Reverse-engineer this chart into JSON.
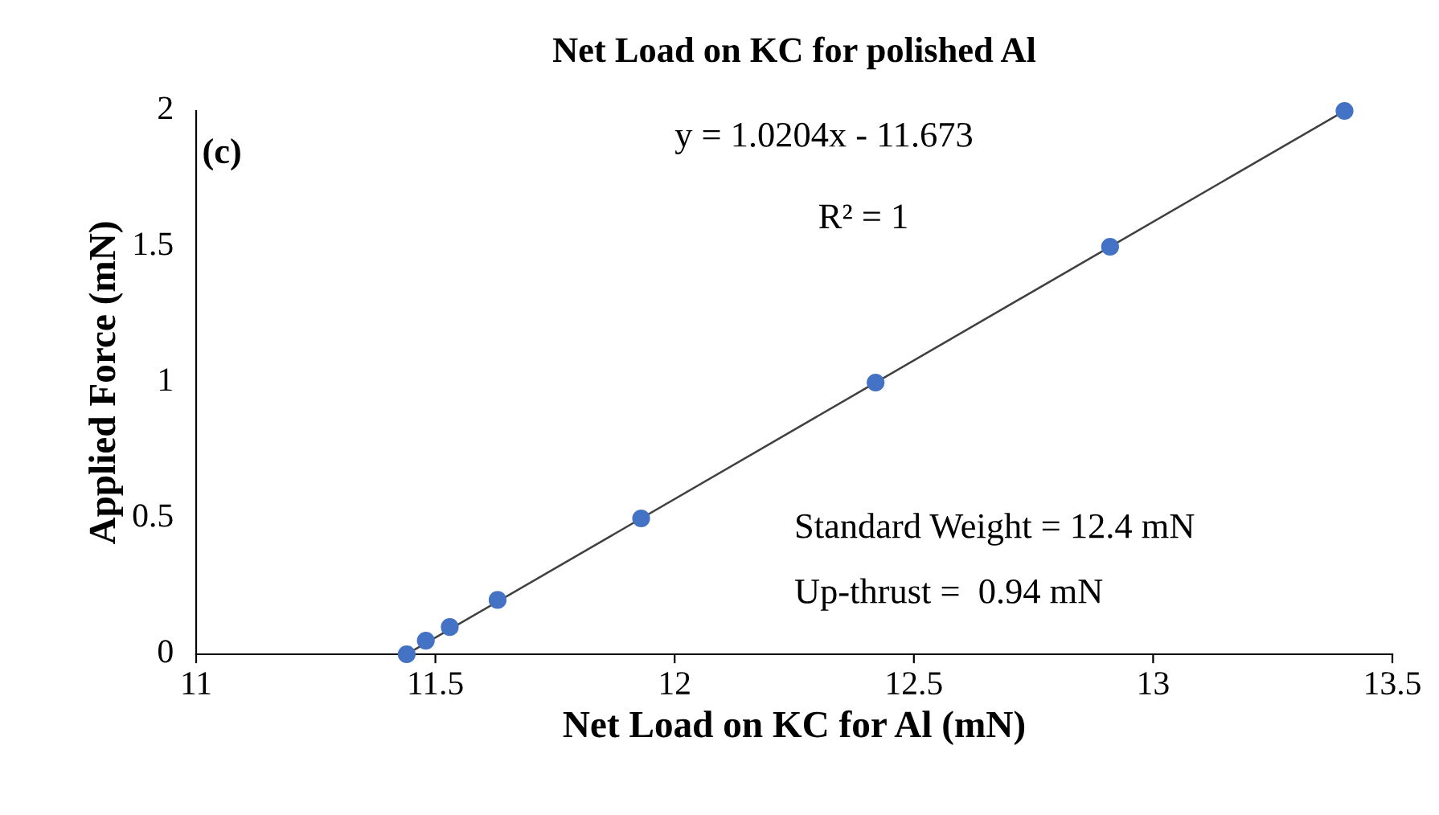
{
  "chart_data": {
    "type": "scatter",
    "title": "Net Load on KC for polished Al",
    "xlabel": "Net Load on KC for Al (mN)",
    "ylabel": "Applied Force (mN)",
    "series": [
      {
        "type": "scatter",
        "color": "#4472c4",
        "marker": "circle",
        "x": [
          11.44,
          11.48,
          11.53,
          11.63,
          11.93,
          12.42,
          12.91,
          13.4
        ],
        "values": [
          0,
          0.05,
          0.1,
          0.2,
          0.5,
          1,
          1.5,
          2
        ]
      },
      {
        "type": "line",
        "color": "#404040",
        "line_style": "solid",
        "marker": "none",
        "x": [
          11.44,
          13.4
        ],
        "values": [
          0,
          2
        ]
      }
    ],
    "annotations": [
      "(c)",
      "y = 1.0204x - 11.673",
      "R² = 1",
      "Standard Weight = 12.4 mN",
      "Up-thrust =  0.94 mN"
    ],
    "xlim": [
      11,
      13.5
    ],
    "xticks": [
      11,
      11.5,
      12,
      12.5,
      13,
      13.5
    ],
    "ylim": [
      0,
      2
    ],
    "yticks": [
      0,
      0.5,
      1,
      1.5,
      2
    ],
    "grid": false,
    "legend": false
  }
}
